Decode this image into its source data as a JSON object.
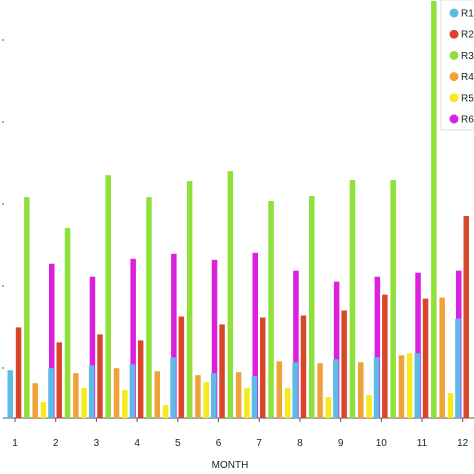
{
  "chart_data": {
    "type": "bar",
    "title": "",
    "xlabel": "MONTH",
    "ylabel": "",
    "ylim": [
      0,
      420
    ],
    "grid": false,
    "legend_position": "top-right",
    "categories": [
      "1",
      "2",
      "3",
      "4",
      "5",
      "6",
      "7",
      "8",
      "9",
      "10",
      "11",
      "12"
    ],
    "series": [
      {
        "name": "R1",
        "color": "#5bbde6",
        "values": [
          48,
          50,
          53,
          54,
          61,
          45,
          42,
          56,
          59,
          61,
          65,
          100
        ]
      },
      {
        "name": "R2",
        "color": "#d9472b",
        "values": [
          91,
          76,
          84,
          78,
          102,
          94,
          101,
          103,
          108,
          124,
          120,
          203
        ]
      },
      {
        "name": "R3",
        "color": "#8fe03a",
        "values": [
          222,
          191,
          244,
          222,
          238,
          248,
          218,
          223,
          239,
          239,
          419,
          0
        ]
      },
      {
        "name": "R4",
        "color": "#f0a23a",
        "values": [
          35,
          45,
          50,
          47,
          43,
          46,
          57,
          55,
          56,
          63,
          121,
          0
        ]
      },
      {
        "name": "R5",
        "color": "#f7ea1c",
        "values": [
          16,
          30,
          28,
          13,
          36,
          30,
          30,
          21,
          23,
          65,
          25,
          0
        ]
      },
      {
        "name": "R6",
        "color": "#dd1fe0",
        "values": [
          155,
          142,
          160,
          165,
          159,
          166,
          148,
          137,
          142,
          146,
          148,
          265
        ]
      }
    ]
  }
}
